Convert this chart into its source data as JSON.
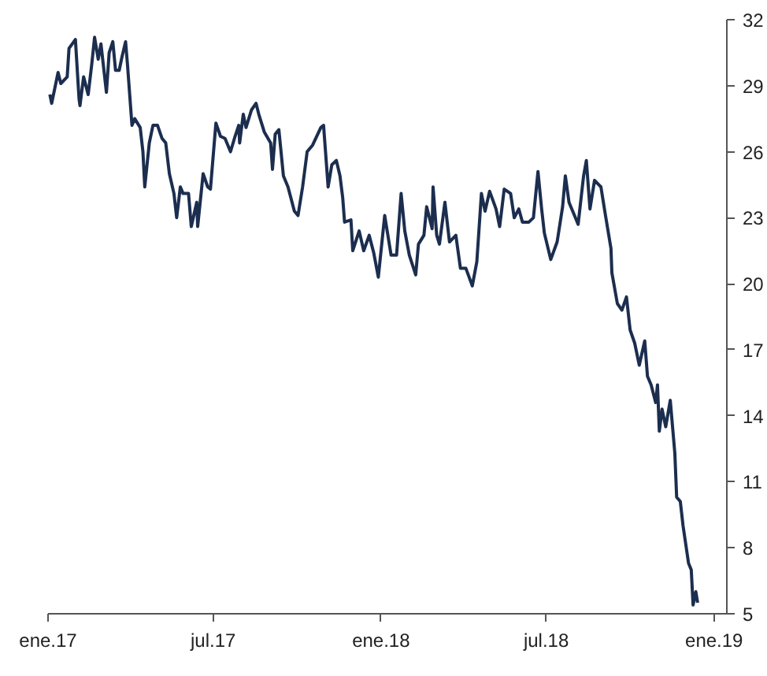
{
  "chart_data": {
    "type": "line",
    "color": "#1c2e4f",
    "x": [
      "2017-01-03",
      "2017-01-05",
      "2017-01-12",
      "2017-01-15",
      "2017-01-22",
      "2017-01-24",
      "2017-01-31",
      "2017-02-04",
      "2017-02-05",
      "2017-02-09",
      "2017-02-14",
      "2017-02-18",
      "2017-02-21",
      "2017-02-25",
      "2017-02-28",
      "2017-03-06",
      "2017-03-09",
      "2017-03-13",
      "2017-03-16",
      "2017-03-20",
      "2017-03-23",
      "2017-03-27",
      "2017-03-29",
      "2017-04-03",
      "2017-04-06",
      "2017-04-12",
      "2017-04-15",
      "2017-04-17",
      "2017-04-22",
      "2017-04-26",
      "2017-05-01",
      "2017-05-06",
      "2017-05-10",
      "2017-05-14",
      "2017-05-19",
      "2017-05-22",
      "2017-05-26",
      "2017-05-29",
      "2017-06-04",
      "2017-06-07",
      "2017-06-13",
      "2017-06-14",
      "2017-06-20",
      "2017-06-25",
      "2017-06-28",
      "2017-07-04",
      "2017-07-09",
      "2017-07-14",
      "2017-07-20",
      "2017-07-25",
      "2017-07-29",
      "2017-07-30",
      "2017-08-03",
      "2017-08-06",
      "2017-08-12",
      "2017-08-17",
      "2017-08-20",
      "2017-08-26",
      "2017-09-02",
      "2017-09-04",
      "2017-09-07",
      "2017-09-11",
      "2017-09-16",
      "2017-09-21",
      "2017-09-28",
      "2017-10-02",
      "2017-10-07",
      "2017-10-12",
      "2017-10-18",
      "2017-10-27",
      "2017-10-30",
      "2017-11-04",
      "2017-11-08",
      "2017-11-13",
      "2017-11-17",
      "2017-11-20",
      "2017-11-22",
      "2017-11-29",
      "2017-12-01",
      "2017-12-08",
      "2017-12-13",
      "2017-12-19",
      "2017-12-24",
      "2017-12-29",
      "2018-01-05",
      "2018-01-12",
      "2018-01-18",
      "2018-01-23",
      "2018-01-27",
      "2018-02-01",
      "2018-02-08",
      "2018-02-11",
      "2018-02-17",
      "2018-02-20",
      "2018-02-26",
      "2018-02-27",
      "2018-03-03",
      "2018-03-06",
      "2018-03-12",
      "2018-03-17",
      "2018-03-24",
      "2018-03-29",
      "2018-04-04",
      "2018-04-11",
      "2018-04-16",
      "2018-04-21",
      "2018-04-25",
      "2018-04-30",
      "2018-05-07",
      "2018-05-11",
      "2018-05-16",
      "2018-05-23",
      "2018-05-27",
      "2018-06-01",
      "2018-06-05",
      "2018-06-12",
      "2018-06-17",
      "2018-06-22",
      "2018-06-26",
      "2018-06-29",
      "2018-07-06",
      "2018-07-13",
      "2018-07-19",
      "2018-07-22",
      "2018-07-26",
      "2018-08-02",
      "2018-08-05",
      "2018-08-11",
      "2018-08-14",
      "2018-08-18",
      "2018-08-23",
      "2018-08-30",
      "2018-09-04",
      "2018-09-10",
      "2018-09-11",
      "2018-09-17",
      "2018-09-22",
      "2018-09-27",
      "2018-10-01",
      "2018-10-06",
      "2018-10-11",
      "2018-10-17",
      "2018-10-20",
      "2018-10-24",
      "2018-10-29",
      "2018-10-31",
      "2018-11-02",
      "2018-11-05",
      "2018-11-09",
      "2018-11-14",
      "2018-11-19",
      "2018-11-21",
      "2018-11-25",
      "2018-11-28",
      "2018-12-04",
      "2018-12-07",
      "2018-12-09",
      "2018-12-12",
      "2018-12-14"
    ],
    "values": [
      28.6,
      28.2,
      29.6,
      29.1,
      29.4,
      30.7,
      31.1,
      28.4,
      28.1,
      29.4,
      28.6,
      30.0,
      31.2,
      30.2,
      30.9,
      28.7,
      30.5,
      31.0,
      29.7,
      29.7,
      30.3,
      31.0,
      30.0,
      27.2,
      27.5,
      27.1,
      26.0,
      24.4,
      26.4,
      27.2,
      27.2,
      26.6,
      26.4,
      25.0,
      24.1,
      23.0,
      24.4,
      24.1,
      24.1,
      22.6,
      23.7,
      22.6,
      25.0,
      24.4,
      24.3,
      27.3,
      26.7,
      26.6,
      26.0,
      26.7,
      27.2,
      26.4,
      27.7,
      27.1,
      27.9,
      28.2,
      27.7,
      26.9,
      26.4,
      25.2,
      26.8,
      27.0,
      24.9,
      24.4,
      23.3,
      23.1,
      24.4,
      26.0,
      26.3,
      27.1,
      27.2,
      24.4,
      25.4,
      25.6,
      24.9,
      23.9,
      22.8,
      22.9,
      21.5,
      22.4,
      21.5,
      22.2,
      21.4,
      20.3,
      23.1,
      21.3,
      21.3,
      24.1,
      22.4,
      21.3,
      20.4,
      21.8,
      22.2,
      23.5,
      22.5,
      24.4,
      22.2,
      21.8,
      23.7,
      21.9,
      22.2,
      20.7,
      20.7,
      19.9,
      21.0,
      24.1,
      23.3,
      24.2,
      23.4,
      22.6,
      24.3,
      24.1,
      23.0,
      23.4,
      22.8,
      22.8,
      23.0,
      25.1,
      23.4,
      22.3,
      21.1,
      21.9,
      23.5,
      24.9,
      23.7,
      23.0,
      22.7,
      24.9,
      25.6,
      23.4,
      24.7,
      24.4,
      23.1,
      21.6,
      20.5,
      19.1,
      18.8,
      19.4,
      17.9,
      17.3,
      16.3,
      17.4,
      15.8,
      15.4,
      14.6,
      15.4,
      13.3,
      14.3,
      13.5,
      14.7,
      12.3,
      10.3,
      10.1,
      9.0,
      7.3,
      7.0,
      5.4,
      6.0,
      5.5
    ],
    "xlim": [
      "2017-01-01",
      "2019-01-15"
    ],
    "xticks": [
      {
        "value": "2017-01-01",
        "label": "ene.17"
      },
      {
        "value": "2017-07-01",
        "label": "jul.17"
      },
      {
        "value": "2018-01-01",
        "label": "ene.18"
      },
      {
        "value": "2018-07-01",
        "label": "jul.18"
      },
      {
        "value": "2019-01-01",
        "label": "ene.19"
      }
    ],
    "ylim": [
      5,
      32
    ],
    "yticks": [
      5,
      8,
      11,
      14,
      17,
      20,
      23,
      26,
      29,
      32
    ],
    "grid": false,
    "marker": "none",
    "line_style": "solid"
  }
}
